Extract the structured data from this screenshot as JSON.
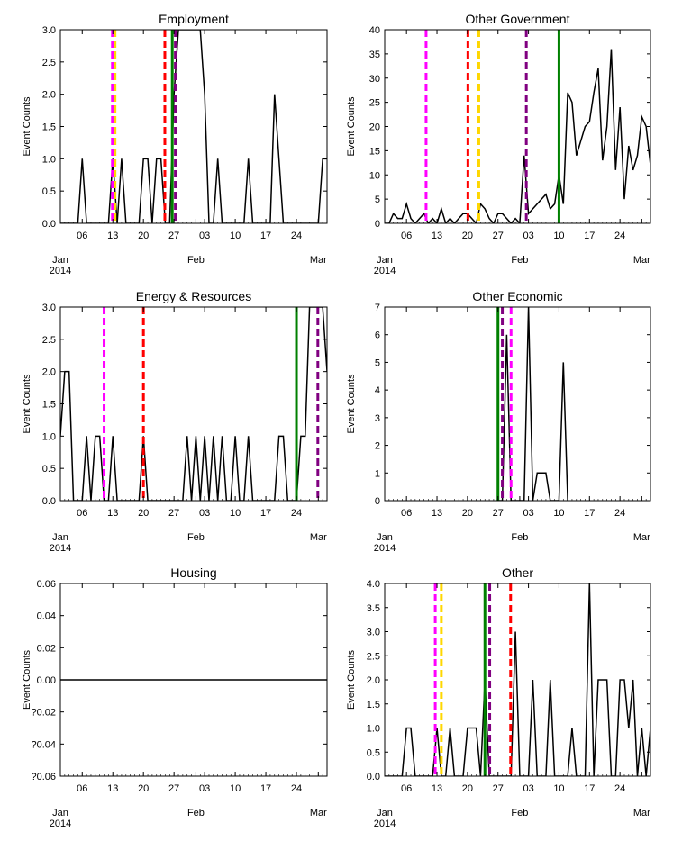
{
  "shared": {
    "ylabel": "Event Counts",
    "x_range": [
      "2014-01-01",
      "2014-03-03"
    ],
    "x_ticks": [
      {
        "date": "2014-01-06",
        "label": "06"
      },
      {
        "date": "2014-01-13",
        "label": "13"
      },
      {
        "date": "2014-01-20",
        "label": "20"
      },
      {
        "date": "2014-01-27",
        "label": "27"
      },
      {
        "date": "2014-02-03",
        "label": "03"
      },
      {
        "date": "2014-02-10",
        "label": "10"
      },
      {
        "date": "2014-02-17",
        "label": "17"
      },
      {
        "date": "2014-02-24",
        "label": "24"
      }
    ],
    "month_labels": [
      {
        "date": "2014-01-01",
        "label": "Jan",
        "year": "2014"
      },
      {
        "date": "2014-02-01",
        "label": "Feb",
        "year": ""
      },
      {
        "date": "2014-03-01",
        "label": "Mar",
        "year": ""
      }
    ],
    "line_color": "#000000",
    "marker_colors": {
      "magenta": "#ff00ff",
      "gold": "#ffd700",
      "red": "#ff0000",
      "green": "#008000",
      "purple": "#800080"
    }
  },
  "chart_data": [
    {
      "type": "line",
      "title": "Employment",
      "ylim": [
        0,
        3
      ],
      "y_ticks": [
        "0.0",
        "0.5",
        "1.0",
        "1.5",
        "2.0",
        "2.5",
        "3.0"
      ],
      "x": [
        "2014-01-01",
        "2014-01-02",
        "2014-01-03",
        "2014-01-04",
        "2014-01-05",
        "2014-01-06",
        "2014-01-07",
        "2014-01-08",
        "2014-01-09",
        "2014-01-10",
        "2014-01-11",
        "2014-01-12",
        "2014-01-13",
        "2014-01-14",
        "2014-01-15",
        "2014-01-16",
        "2014-01-17",
        "2014-01-18",
        "2014-01-19",
        "2014-01-20",
        "2014-01-21",
        "2014-01-22",
        "2014-01-23",
        "2014-01-24",
        "2014-01-25",
        "2014-01-26",
        "2014-01-27",
        "2014-01-28",
        "2014-01-29",
        "2014-01-30",
        "2014-01-31",
        "2014-02-01",
        "2014-02-02",
        "2014-02-03",
        "2014-02-04",
        "2014-02-05",
        "2014-02-06",
        "2014-02-07",
        "2014-02-08",
        "2014-02-09",
        "2014-02-10",
        "2014-02-11",
        "2014-02-12",
        "2014-02-13",
        "2014-02-14",
        "2014-02-15",
        "2014-02-16",
        "2014-02-17",
        "2014-02-18",
        "2014-02-19",
        "2014-02-20",
        "2014-02-21",
        "2014-02-22",
        "2014-02-23",
        "2014-02-24",
        "2014-02-25",
        "2014-02-26",
        "2014-02-27",
        "2014-02-28",
        "2014-03-01",
        "2014-03-02",
        "2014-03-03"
      ],
      "y": [
        0,
        0,
        0,
        0,
        0,
        1,
        0,
        0,
        0,
        0,
        0,
        0,
        1,
        0,
        1,
        0,
        0,
        0,
        0,
        1,
        1,
        0,
        1,
        1,
        0,
        0,
        2,
        3,
        3,
        3,
        3,
        3,
        3,
        2,
        0,
        0,
        1,
        0,
        0,
        0,
        0,
        0,
        0,
        1,
        0,
        0,
        0,
        0,
        0,
        2,
        1,
        0,
        0,
        0,
        0,
        0,
        0,
        0,
        0,
        0,
        1,
        1
      ],
      "markers": [
        {
          "date": "2014-01-12.9",
          "color": "magenta",
          "style": "dashed"
        },
        {
          "date": "2014-01-13.5",
          "color": "gold",
          "style": "dashed"
        },
        {
          "date": "2014-01-24.9",
          "color": "red",
          "style": "dashed"
        },
        {
          "date": "2014-01-26.6",
          "color": "green",
          "style": "solid"
        },
        {
          "date": "2014-01-27.3",
          "color": "purple",
          "style": "dashed"
        }
      ]
    },
    {
      "type": "line",
      "title": "Other Government",
      "ylim": [
        0,
        40
      ],
      "y_ticks": [
        "0",
        "5",
        "10",
        "15",
        "20",
        "25",
        "30",
        "35",
        "40"
      ],
      "x": [
        "2014-01-01",
        "2014-01-02",
        "2014-01-03",
        "2014-01-04",
        "2014-01-05",
        "2014-01-06",
        "2014-01-07",
        "2014-01-08",
        "2014-01-09",
        "2014-01-10",
        "2014-01-11",
        "2014-01-12",
        "2014-01-13",
        "2014-01-14",
        "2014-01-15",
        "2014-01-16",
        "2014-01-17",
        "2014-01-18",
        "2014-01-19",
        "2014-01-20",
        "2014-01-21",
        "2014-01-22",
        "2014-01-23",
        "2014-01-24",
        "2014-01-25",
        "2014-01-26",
        "2014-01-27",
        "2014-01-28",
        "2014-01-29",
        "2014-01-30",
        "2014-01-31",
        "2014-02-01",
        "2014-02-02",
        "2014-02-03",
        "2014-02-04",
        "2014-02-05",
        "2014-02-06",
        "2014-02-07",
        "2014-02-08",
        "2014-02-09",
        "2014-02-10",
        "2014-02-11",
        "2014-02-12",
        "2014-02-13",
        "2014-02-14",
        "2014-02-15",
        "2014-02-16",
        "2014-02-17",
        "2014-02-18",
        "2014-02-19",
        "2014-02-20",
        "2014-02-21",
        "2014-02-22",
        "2014-02-23",
        "2014-02-24",
        "2014-02-25",
        "2014-02-26",
        "2014-02-27",
        "2014-02-28",
        "2014-03-01",
        "2014-03-02",
        "2014-03-03"
      ],
      "y": [
        0,
        0,
        2,
        1,
        1,
        4,
        1,
        0,
        1,
        2,
        0,
        1,
        0,
        3,
        0,
        1,
        0,
        1,
        2,
        2,
        1,
        0,
        4,
        3,
        1,
        0,
        2,
        2,
        1,
        0,
        1,
        0,
        14,
        2,
        3,
        4,
        5,
        6,
        3,
        4,
        10,
        4,
        27,
        25,
        14,
        17,
        20,
        21,
        27,
        32,
        13,
        20,
        36,
        11,
        24,
        5,
        16,
        11,
        14,
        22,
        20,
        12
      ],
      "markers": [
        {
          "date": "2014-01-10.5",
          "color": "magenta",
          "style": "dashed"
        },
        {
          "date": "2014-01-20.1",
          "color": "red",
          "style": "dashed"
        },
        {
          "date": "2014-01-22.6",
          "color": "gold",
          "style": "dashed"
        },
        {
          "date": "2014-02-02.5",
          "color": "purple",
          "style": "dashed"
        },
        {
          "date": "2014-02-10.0",
          "color": "green",
          "style": "solid"
        }
      ]
    },
    {
      "type": "line",
      "title": "Energy & Resources",
      "ylim": [
        0,
        3
      ],
      "y_ticks": [
        "0.0",
        "0.5",
        "1.0",
        "1.5",
        "2.0",
        "2.5",
        "3.0"
      ],
      "x": [
        "2014-01-01",
        "2014-01-02",
        "2014-01-03",
        "2014-01-04",
        "2014-01-05",
        "2014-01-06",
        "2014-01-07",
        "2014-01-08",
        "2014-01-09",
        "2014-01-10",
        "2014-01-11",
        "2014-01-12",
        "2014-01-13",
        "2014-01-14",
        "2014-01-15",
        "2014-01-16",
        "2014-01-17",
        "2014-01-18",
        "2014-01-19",
        "2014-01-20",
        "2014-01-21",
        "2014-01-22",
        "2014-01-23",
        "2014-01-24",
        "2014-01-25",
        "2014-01-26",
        "2014-01-27",
        "2014-01-28",
        "2014-01-29",
        "2014-01-30",
        "2014-01-31",
        "2014-02-01",
        "2014-02-02",
        "2014-02-03",
        "2014-02-04",
        "2014-02-05",
        "2014-02-06",
        "2014-02-07",
        "2014-02-08",
        "2014-02-09",
        "2014-02-10",
        "2014-02-11",
        "2014-02-12",
        "2014-02-13",
        "2014-02-14",
        "2014-02-15",
        "2014-02-16",
        "2014-02-17",
        "2014-02-18",
        "2014-02-19",
        "2014-02-20",
        "2014-02-21",
        "2014-02-22",
        "2014-02-23",
        "2014-02-24",
        "2014-02-25",
        "2014-02-26",
        "2014-02-27",
        "2014-02-28",
        "2014-03-01",
        "2014-03-02",
        "2014-03-03"
      ],
      "y": [
        1,
        2,
        2,
        0,
        0,
        0,
        1,
        0,
        1,
        1,
        0,
        0,
        1,
        0,
        0,
        0,
        0,
        0,
        0,
        1,
        0,
        0,
        0,
        0,
        0,
        0,
        0,
        0,
        0,
        1,
        0,
        1,
        0,
        1,
        0,
        1,
        0,
        1,
        0,
        0,
        1,
        0,
        0,
        1,
        0,
        0,
        0,
        0,
        0,
        0,
        1,
        1,
        0,
        0,
        0,
        1,
        1,
        3,
        3,
        3,
        3,
        2
      ],
      "markers": [
        {
          "date": "2014-01-11.0",
          "color": "magenta",
          "style": "dashed"
        },
        {
          "date": "2014-01-20.0",
          "color": "red",
          "style": "dashed"
        },
        {
          "date": "2014-02-24.0",
          "color": "green",
          "style": "solid"
        },
        {
          "date": "2014-02-28.9",
          "color": "purple",
          "style": "dashed"
        }
      ]
    },
    {
      "type": "line",
      "title": "Other Economic",
      "ylim": [
        0,
        7
      ],
      "y_ticks": [
        "0",
        "1",
        "2",
        "3",
        "4",
        "5",
        "6",
        "7"
      ],
      "x": [
        "2014-01-27",
        "2014-01-28",
        "2014-01-29",
        "2014-01-30",
        "2014-01-31",
        "2014-02-01",
        "2014-02-02",
        "2014-02-03",
        "2014-02-04",
        "2014-02-05",
        "2014-02-06",
        "2014-02-07",
        "2014-02-08",
        "2014-02-09",
        "2014-02-10",
        "2014-02-11",
        "2014-02-12"
      ],
      "y": [
        0,
        0,
        6,
        0,
        0,
        0,
        0,
        7,
        0,
        1,
        1,
        1,
        0,
        0,
        0,
        5,
        0
      ],
      "markers": [
        {
          "date": "2014-01-27.0",
          "color": "green",
          "style": "solid"
        },
        {
          "date": "2014-01-28.0",
          "color": "purple",
          "style": "dashed"
        },
        {
          "date": "2014-01-30.0",
          "color": "magenta",
          "style": "dashed"
        }
      ]
    },
    {
      "type": "line",
      "title": "Housing",
      "ylim": [
        -0.06,
        0.06
      ],
      "y_ticks": [
        "?0.06",
        "?0.04",
        "?0.02",
        "0.00",
        "0.02",
        "0.04",
        "0.06"
      ],
      "x": [
        "2014-01-01",
        "2014-03-03"
      ],
      "y": [
        0,
        0
      ],
      "markers": []
    },
    {
      "type": "line",
      "title": "Other",
      "ylim": [
        0,
        4
      ],
      "y_ticks": [
        "0.0",
        "0.5",
        "1.0",
        "1.5",
        "2.0",
        "2.5",
        "3.0",
        "3.5",
        "4.0"
      ],
      "x": [
        "2014-01-01",
        "2014-01-02",
        "2014-01-03",
        "2014-01-04",
        "2014-01-05",
        "2014-01-06",
        "2014-01-07",
        "2014-01-08",
        "2014-01-09",
        "2014-01-10",
        "2014-01-11",
        "2014-01-12",
        "2014-01-13",
        "2014-01-14",
        "2014-01-15",
        "2014-01-16",
        "2014-01-17",
        "2014-01-18",
        "2014-01-19",
        "2014-01-20",
        "2014-01-21",
        "2014-01-22",
        "2014-01-23",
        "2014-01-24",
        "2014-01-25",
        "2014-01-26",
        "2014-01-27",
        "2014-01-28",
        "2014-01-29",
        "2014-01-30",
        "2014-01-31",
        "2014-02-01",
        "2014-02-02",
        "2014-02-03",
        "2014-02-04",
        "2014-02-05",
        "2014-02-06",
        "2014-02-07",
        "2014-02-08",
        "2014-02-09",
        "2014-02-10",
        "2014-02-11",
        "2014-02-12",
        "2014-02-13",
        "2014-02-14",
        "2014-02-15",
        "2014-02-16",
        "2014-02-17",
        "2014-02-18",
        "2014-02-19",
        "2014-02-20",
        "2014-02-21",
        "2014-02-22",
        "2014-02-23",
        "2014-02-24",
        "2014-02-25",
        "2014-02-26",
        "2014-02-27",
        "2014-02-28",
        "2014-03-01",
        "2014-03-02",
        "2014-03-03"
      ],
      "y": [
        0,
        0,
        0,
        0,
        0,
        1,
        1,
        0,
        0,
        0,
        0,
        0,
        1,
        0,
        0,
        1,
        0,
        0,
        0,
        1,
        1,
        1,
        0,
        2,
        0,
        0,
        0,
        0,
        0,
        0,
        3,
        0,
        0,
        0,
        2,
        0,
        0,
        0,
        2,
        0,
        0,
        0,
        0,
        1,
        0,
        0,
        0,
        4,
        0,
        2,
        2,
        2,
        0,
        0,
        2,
        2,
        1,
        2,
        0,
        1,
        0,
        1
      ],
      "markers": [
        {
          "date": "2014-01-12.6",
          "color": "magenta",
          "style": "dashed"
        },
        {
          "date": "2014-01-14.0",
          "color": "gold",
          "style": "dashed"
        },
        {
          "date": "2014-01-24.0",
          "color": "green",
          "style": "solid"
        },
        {
          "date": "2014-01-25.1",
          "color": "purple",
          "style": "dashed"
        },
        {
          "date": "2014-01-29.9",
          "color": "red",
          "style": "dashed"
        }
      ]
    }
  ]
}
